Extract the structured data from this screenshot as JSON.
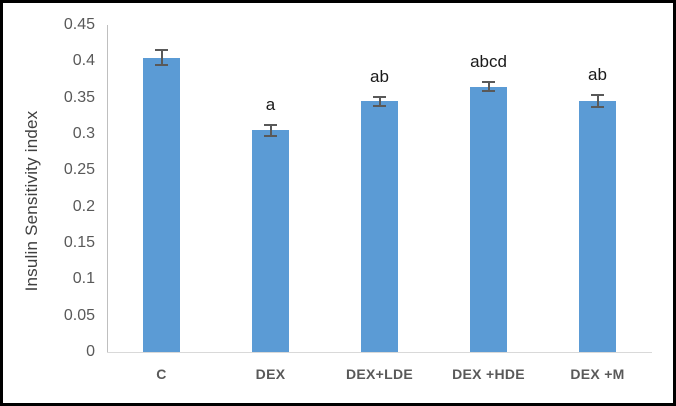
{
  "figure": {
    "background_color": "#ffffff",
    "frame_color": "#000000"
  },
  "chart_data": {
    "type": "bar",
    "title": "",
    "xlabel": "",
    "ylabel": "Insulin Sensitivity index",
    "categories": [
      "C",
      "DEX",
      "DEX+LDE",
      "DEX +HDE",
      "DEX +M"
    ],
    "values": [
      0.405,
      0.305,
      0.345,
      0.365,
      0.345
    ],
    "errors": [
      0.01,
      0.008,
      0.006,
      0.006,
      0.008
    ],
    "annotations": [
      "",
      "a",
      "ab",
      "abcd",
      "ab"
    ],
    "ylim": [
      0,
      0.45
    ],
    "ytick_labels": [
      "0",
      "0.05",
      "0.1",
      "0.15",
      "0.2",
      "0.25",
      "0.3",
      "0.35",
      "0.4",
      "0.45"
    ],
    "grid": false,
    "legend": false,
    "bar_color": "#5B9BD5",
    "error_bar_color": "#595959",
    "axis_line_color": "#BFBFBF",
    "baseline_color": "#D9D9D9",
    "tick_label_color": "#595959",
    "category_label_color": "#595959",
    "annotation_color": "#1a1a1a"
  }
}
